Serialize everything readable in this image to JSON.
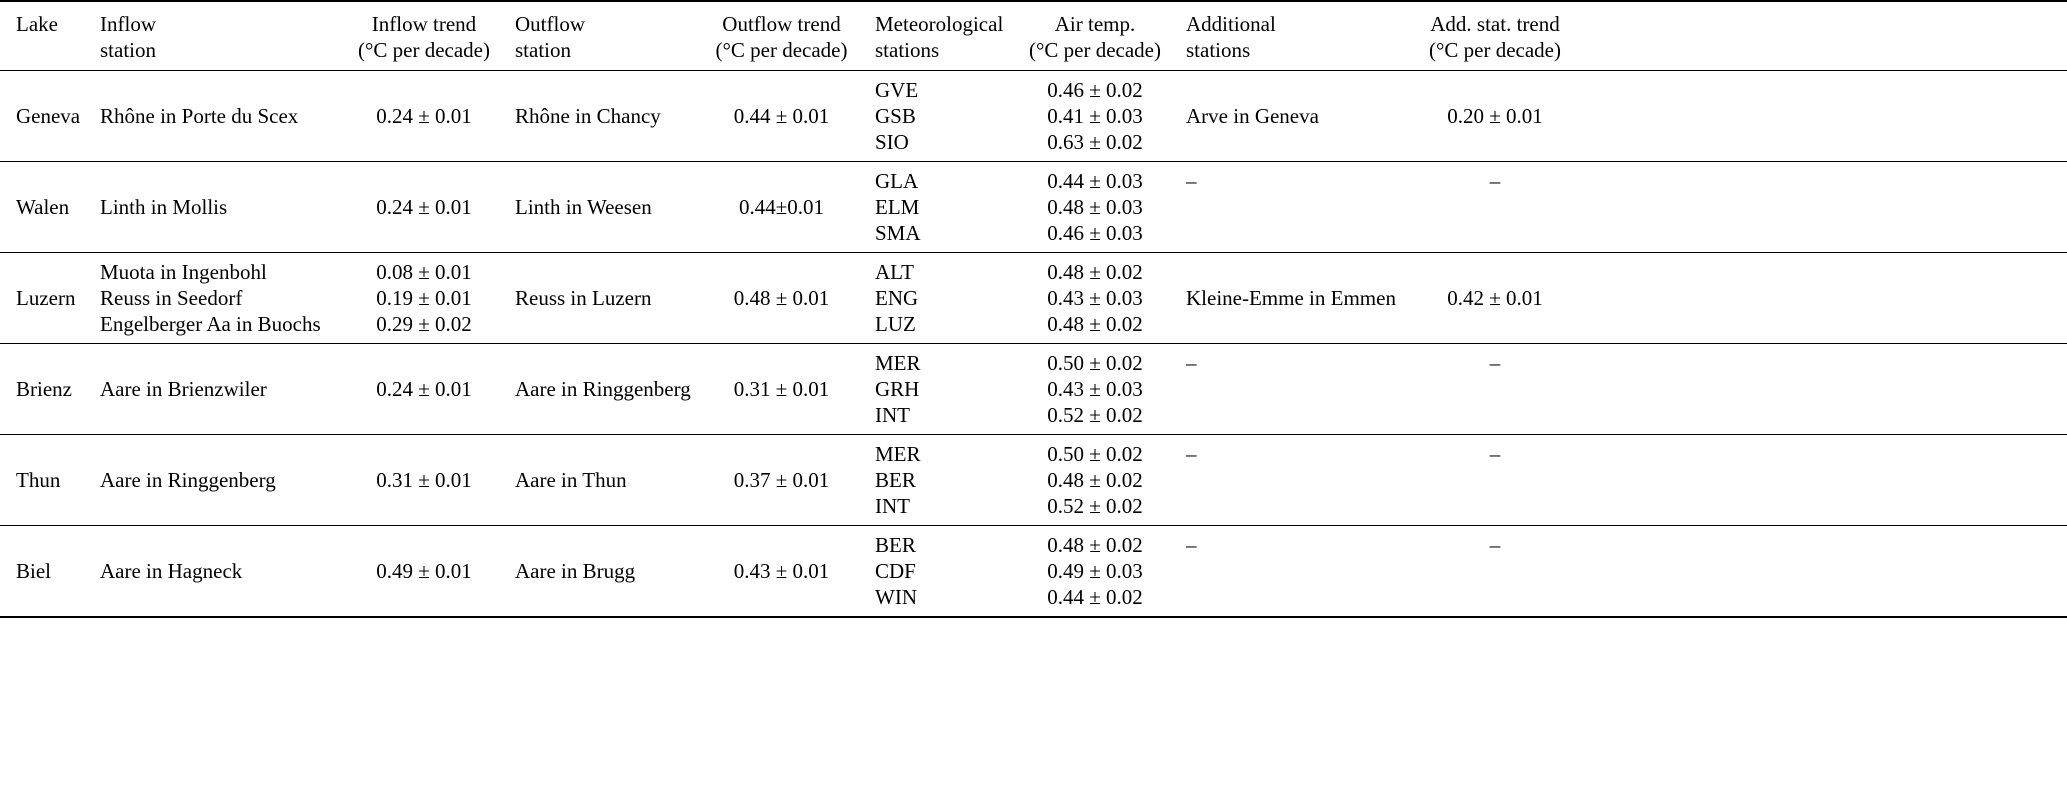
{
  "table": {
    "columns": [
      {
        "id": "lake",
        "lines": [
          "Lake",
          ""
        ]
      },
      {
        "id": "inflow_station",
        "lines": [
          "Inflow",
          "station"
        ]
      },
      {
        "id": "inflow_trend",
        "lines": [
          "Inflow trend",
          "(°C per decade)"
        ]
      },
      {
        "id": "outflow_station",
        "lines": [
          "Outflow",
          "station"
        ]
      },
      {
        "id": "outflow_trend",
        "lines": [
          "Outflow trend",
          "(°C per decade)"
        ]
      },
      {
        "id": "met_stations",
        "lines": [
          "Meteorological",
          "stations"
        ]
      },
      {
        "id": "air_temp",
        "lines": [
          "Air temp.",
          "(°C per decade)"
        ]
      },
      {
        "id": "additional_stations",
        "lines": [
          "Additional",
          "stations"
        ]
      },
      {
        "id": "add_stat_trend",
        "lines": [
          "Add. stat. trend",
          "(°C per decade)"
        ]
      }
    ],
    "rows": [
      {
        "lake": "Geneva",
        "inflow_stations": [
          "Rhône in Porte du Scex"
        ],
        "inflow_trends": [
          "0.24 ± 0.01"
        ],
        "outflow_station": "Rhône in Chancy",
        "outflow_trend": "0.44 ± 0.01",
        "met_stations": [
          "GVE",
          "GSB",
          "SIO"
        ],
        "air_temps": [
          "0.46 ± 0.02",
          "0.41 ± 0.03",
          "0.63 ± 0.02"
        ],
        "additional_station": "Arve in Geneva",
        "additional_trend": "0.20 ± 0.01"
      },
      {
        "lake": "Walen",
        "inflow_stations": [
          "Linth in Mollis"
        ],
        "inflow_trends": [
          "0.24 ± 0.01"
        ],
        "outflow_station": "Linth in Weesen",
        "outflow_trend": "0.44±0.01",
        "met_stations": [
          "GLA",
          "ELM",
          "SMA"
        ],
        "air_temps": [
          "0.44 ± 0.03",
          "0.48 ± 0.03",
          "0.46 ± 0.03"
        ],
        "additional_station": "–",
        "additional_trend": "–"
      },
      {
        "lake": "Luzern",
        "inflow_stations": [
          "Muota in Ingenbohl",
          "Reuss in Seedorf",
          "Engelberger Aa in Buochs"
        ],
        "inflow_trends": [
          "0.08 ± 0.01",
          "0.19 ± 0.01",
          "0.29 ± 0.02"
        ],
        "outflow_station": "Reuss in Luzern",
        "outflow_trend": "0.48 ± 0.01",
        "met_stations": [
          "ALT",
          "ENG",
          "LUZ"
        ],
        "air_temps": [
          "0.48 ± 0.02",
          "0.43 ± 0.03",
          "0.48 ± 0.02"
        ],
        "additional_station": "Kleine-Emme in Emmen",
        "additional_trend": "0.42 ± 0.01"
      },
      {
        "lake": "Brienz",
        "inflow_stations": [
          "Aare in Brienzwiler"
        ],
        "inflow_trends": [
          "0.24 ± 0.01"
        ],
        "outflow_station": "Aare in Ringgenberg",
        "outflow_trend": "0.31 ± 0.01",
        "met_stations": [
          "MER",
          "GRH",
          "INT"
        ],
        "air_temps": [
          "0.50 ± 0.02",
          "0.43 ± 0.03",
          "0.52 ± 0.02"
        ],
        "additional_station": "–",
        "additional_trend": "–"
      },
      {
        "lake": "Thun",
        "inflow_stations": [
          "Aare in Ringgenberg"
        ],
        "inflow_trends": [
          "0.31 ± 0.01"
        ],
        "outflow_station": "Aare in Thun",
        "outflow_trend": "0.37 ± 0.01",
        "met_stations": [
          "MER",
          "BER",
          "INT"
        ],
        "air_temps": [
          "0.50 ± 0.02",
          "0.48 ± 0.02",
          "0.52 ± 0.02"
        ],
        "additional_station": "–",
        "additional_trend": "–"
      },
      {
        "lake": "Biel",
        "inflow_stations": [
          "Aare in Hagneck"
        ],
        "inflow_trends": [
          "0.49 ± 0.01"
        ],
        "outflow_station": "Aare in Brugg",
        "outflow_trend": "0.43 ± 0.01",
        "met_stations": [
          "BER",
          "CDF",
          "WIN"
        ],
        "air_temps": [
          "0.48 ± 0.02",
          "0.49 ± 0.03",
          "0.44 ± 0.02"
        ],
        "additional_station": "–",
        "additional_trend": "–"
      }
    ]
  }
}
